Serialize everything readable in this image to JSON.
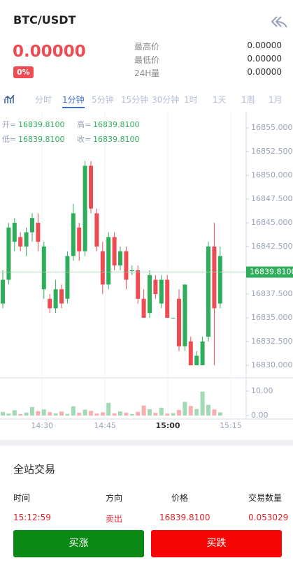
{
  "header": {
    "title": "BTC/USDT"
  },
  "ticker": {
    "price": "0.00000",
    "change": "0%",
    "stats": [
      {
        "label": "最高价",
        "value": "0.00000"
      },
      {
        "label": "最低价",
        "value": "0.00000"
      },
      {
        "label": "24H量",
        "value": "0.00000"
      }
    ]
  },
  "tabs": [
    "分时",
    "1分钟",
    "5分钟",
    "15分钟",
    "30分钟",
    "1时",
    "1天",
    "1周",
    "1月"
  ],
  "active_tab": 1,
  "chart_data": {
    "type": "candlestick",
    "info": [
      [
        {
          "label": "开=",
          "value": "16839.8100"
        },
        {
          "label": "高=",
          "value": "16839.8100"
        }
      ],
      [
        {
          "label": "低=",
          "value": "16839.8100"
        },
        {
          "label": "收=",
          "value": "16839.8100"
        }
      ]
    ],
    "categories": [
      null,
      null,
      null,
      null,
      null,
      null,
      null,
      null,
      null,
      null,
      null,
      null,
      null,
      null,
      null,
      null,
      null,
      null,
      null,
      null,
      null,
      null,
      null,
      null,
      null,
      null,
      null,
      null,
      null,
      null,
      null,
      null,
      null,
      null,
      null,
      null,
      null,
      null
    ],
    "open": [
      16836.5,
      16839,
      16843,
      16843.5,
      16842.5,
      16844,
      16845,
      16838,
      16837,
      16836,
      16838,
      16837,
      16841.5,
      16844.5,
      16842,
      16851,
      16846,
      16842,
      16838.5,
      16843.5,
      16840.5,
      16842,
      16840,
      16840,
      16837,
      16835.5,
      16839,
      16836.5,
      16839,
      16835,
      16837,
      16832,
      16832.5,
      16830,
      16830,
      16833,
      16842.5,
      16836.5
    ],
    "high": [
      16840,
      16845,
      16845.5,
      16844,
      16844.5,
      16846,
      16846,
      16843,
      16837.5,
      16839,
      16838.5,
      16842,
      16847,
      16845,
      16851.5,
      16851.5,
      16846.5,
      16843,
      16844,
      16844,
      16842.5,
      16842.5,
      16840.5,
      16840.5,
      16838,
      16840,
      16839.5,
      16839.5,
      16839.5,
      16835,
      16838,
      16838.5,
      16833,
      16831.5,
      16833,
      16843,
      16845,
      16842.5
    ],
    "low": [
      16836,
      16838.5,
      16842,
      16842,
      16841.5,
      16843,
      16842,
      16837,
      16835.5,
      16835.5,
      16836,
      16836.5,
      16841,
      16841,
      16841.5,
      16846,
      16842,
      16837.5,
      16838,
      16840,
      16840,
      16838,
      16839.5,
      16836.5,
      16835,
      16835,
      16837,
      16836,
      16835,
      16835,
      16831.5,
      16831.5,
      16830,
      16830,
      16830,
      16832.5,
      16830,
      16836
    ],
    "close": [
      16839,
      16844.5,
      16845,
      16842.5,
      16844,
      16845.5,
      16843,
      16842.5,
      16836,
      16838,
      16836.5,
      16841.5,
      16846,
      16842,
      16851,
      16846.5,
      16842.5,
      16838.5,
      16843.5,
      16840.5,
      16842,
      16839,
      16840,
      16837,
      16835,
      16839.5,
      16837.5,
      16839,
      16835,
      16835,
      16832,
      16838.5,
      16830,
      16831,
      16832.5,
      16842.5,
      16836,
      16841.5
    ],
    "volume": [
      1.5,
      0.8,
      2.2,
      0.6,
      1.2,
      3.5,
      1.8,
      2.5,
      1.4,
      0.9,
      1.6,
      0.7,
      3.8,
      1.1,
      2.4,
      1.9,
      0.8,
      1.3,
      5.2,
      0.9,
      1.7,
      1.2,
      0.6,
      1.5,
      4.1,
      2.6,
      1.1,
      3.2,
      0.8,
      1.0,
      2.3,
      5.6,
      3.9,
      2.7,
      9.8,
      4.4,
      2.5,
      1.3
    ],
    "ylim": [
      16828.75,
      16856.69
    ],
    "yticks": [
      {
        "value": 16855,
        "label": "16855.0000"
      },
      {
        "value": 16852.5,
        "label": "16852.5000"
      },
      {
        "value": 16850,
        "label": "16850.0000"
      },
      {
        "value": 16847.5,
        "label": "16847.5000"
      },
      {
        "value": 16845,
        "label": "16845.0000"
      },
      {
        "value": 16842.5,
        "label": "16842.5000"
      },
      {
        "value": 16837.5,
        "label": "16837.5000"
      },
      {
        "value": 16835,
        "label": "16835.0000"
      },
      {
        "value": 16832.5,
        "label": "16832.5000"
      },
      {
        "value": 16830,
        "label": "16830.0000"
      }
    ],
    "current": {
      "value": 16839.81,
      "label": "16839.8100"
    },
    "vlim": [
      0,
      14.3
    ],
    "vticks": [
      {
        "value": 10,
        "label": "10.00"
      },
      {
        "value": 0,
        "label": "0.00"
      }
    ],
    "xticks": [
      {
        "value": 6.7,
        "label": "14:30"
      },
      {
        "value": 17.4,
        "label": "14:45"
      },
      {
        "value": 28.1,
        "label": "15:00"
      },
      {
        "value": 38.8,
        "label": "15:15"
      }
    ],
    "up_color": "#2eae5b",
    "down_color": "#ef4b52"
  },
  "trades": {
    "title": "全站交易",
    "columns": [
      "时间",
      "方向",
      "价格",
      "交易数量"
    ],
    "rows": [
      [
        "15:12:59",
        "卖出",
        "16839.8100",
        "0.053029"
      ]
    ]
  },
  "buttons": [
    "买涨",
    "买跌"
  ]
}
